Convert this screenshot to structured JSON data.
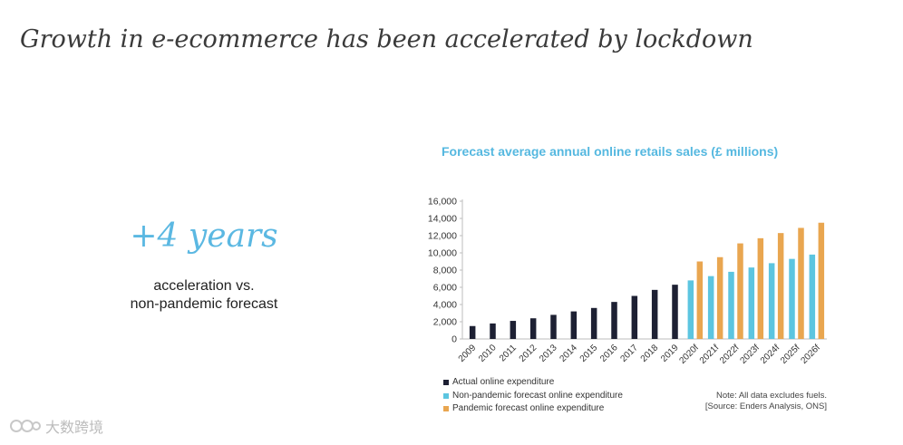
{
  "headline": "Growth in e-ecommerce has been accelerated by lockdown",
  "stat": {
    "value": "+4 years",
    "caption_line1": "acceleration vs.",
    "caption_line2": "non-pandemic forecast"
  },
  "note": {
    "line1": "Note: All data excludes fuels.",
    "line2": "[Source: Enders Analysis, ONS]"
  },
  "watermark": {
    "text": "大数跨境"
  },
  "colors": {
    "actual": "#1d2033",
    "non_pandemic": "#5cc5e0",
    "pandemic": "#e9a650",
    "accent": "#5bb8e2"
  },
  "chart_data": {
    "type": "bar",
    "title": "Forecast average annual online retails sales (£ millions)",
    "categories": [
      "2009",
      "2010",
      "2011",
      "2012",
      "2013",
      "2014",
      "2015",
      "2016",
      "2017",
      "2018",
      "2019",
      "2020f",
      "2021f",
      "2022f",
      "2023f",
      "2024f",
      "2025f",
      "2026f"
    ],
    "yticks": [
      0,
      2000,
      4000,
      6000,
      8000,
      10000,
      12000,
      14000,
      16000
    ],
    "ytick_labels": [
      "0",
      "2,000",
      "4,000",
      "6,000",
      "8,000",
      "10,000",
      "12,000",
      "14,000",
      "16,000"
    ],
    "ylim": [
      0,
      16000
    ],
    "grid": false,
    "legend_position": "bottom-left",
    "series": [
      {
        "name": "Actual online expenditure",
        "color": "#1d2033",
        "values": [
          1500,
          1800,
          2100,
          2400,
          2800,
          3200,
          3600,
          4300,
          5000,
          5700,
          6300,
          null,
          null,
          null,
          null,
          null,
          null,
          null
        ]
      },
      {
        "name": "Non-pandemic forecast online expenditure",
        "color": "#5cc5e0",
        "values": [
          null,
          null,
          null,
          null,
          null,
          null,
          null,
          null,
          null,
          null,
          null,
          6800,
          7300,
          7800,
          8300,
          8800,
          9300,
          9800
        ]
      },
      {
        "name": "Pandemic forecast online expenditure",
        "color": "#e9a650",
        "values": [
          null,
          null,
          null,
          null,
          null,
          null,
          null,
          null,
          null,
          null,
          null,
          9000,
          9500,
          11100,
          11700,
          12300,
          12900,
          13500
        ]
      }
    ]
  }
}
